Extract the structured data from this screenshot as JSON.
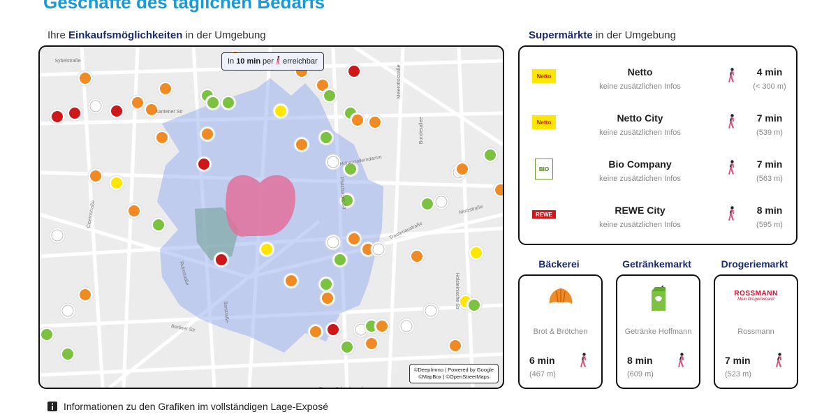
{
  "header": {
    "title": "Geschäfte des täglichen Bedarfs"
  },
  "map": {
    "heading": {
      "prefix": "Ihre",
      "bold": "Einkaufsmöglichkeiten",
      "suffix": "in der Umgebung"
    },
    "badge": {
      "in": "In",
      "time": "10 min",
      "per": "per",
      "suffix": "erreichbar"
    },
    "attribution": [
      "©DeepImmo | Powered by Google",
      "©MapBox | ©OpenStreetMaps"
    ],
    "streets": [
      "Sybelstraße",
      "Xantener Str",
      "Cicerostraße",
      "Hohenzollerndamm",
      "Ruhrstraße",
      "Barstraße",
      "Berliner Str",
      "Bundesallee",
      "Meierottostraße",
      "Trautenaustraße",
      "Motzstraße",
      "Str. am Schoelerpark",
      "Pfalzburger Str",
      "Holsteinische Str"
    ]
  },
  "supermarkets": {
    "heading": {
      "bold": "Supermärkte",
      "suffix": "in der Umgebung"
    },
    "items": [
      {
        "logo": "Netto",
        "name": "Netto",
        "info": "keine zusätzlichen Infos",
        "time": "4 min",
        "distance": "(< 300 m)"
      },
      {
        "logo": "Netto",
        "name": "Netto City",
        "info": "keine zusätzlichen Infos",
        "time": "7 min",
        "distance": "(539 m)"
      },
      {
        "logo": "BIO",
        "name": "Bio Company",
        "info": "keine zusätzlichen Infos",
        "time": "7 min",
        "distance": "(563 m)"
      },
      {
        "logo": "REWE",
        "name": "REWE City",
        "info": "keine zusätzlichen Infos",
        "time": "8 min",
        "distance": "(595 m)"
      }
    ]
  },
  "cards": [
    {
      "heading": "Bäckerei",
      "name": "Brot & Brötchen",
      "time": "6 min",
      "distance": "(467 m)"
    },
    {
      "heading": "Getränkemarkt",
      "name": "Getränke Hoffmann",
      "time": "8 min",
      "distance": "(609 m)"
    },
    {
      "heading": "Drogeriemarkt",
      "logo": "ROSSMANN",
      "logo_sub": "Mein Drogeriemarkt",
      "name": "Rossmann",
      "time": "7 min",
      "distance": "(523 m)"
    }
  ],
  "footer": {
    "text": "Informationen zu den Grafiken im vollständigen Lage-Exposé"
  }
}
